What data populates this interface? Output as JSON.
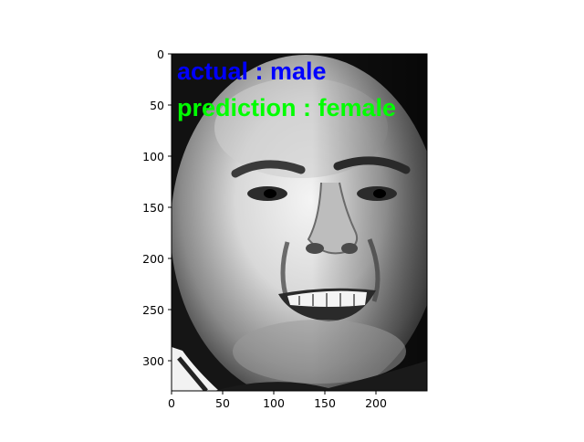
{
  "figure": {
    "image_description_icon": "grayscale-face-photo-icon",
    "annotations": {
      "actual": {
        "text": "actual : male",
        "color": "#0000ff"
      },
      "prediction": {
        "text": "prediction : female",
        "color": "#00ff00"
      }
    },
    "axes": {
      "x_ticks": [
        "0",
        "50",
        "100",
        "150",
        "200"
      ],
      "y_ticks": [
        "0",
        "50",
        "100",
        "150",
        "200",
        "250",
        "300"
      ],
      "x_range": [
        0,
        250
      ],
      "y_range": [
        0,
        330
      ]
    }
  }
}
